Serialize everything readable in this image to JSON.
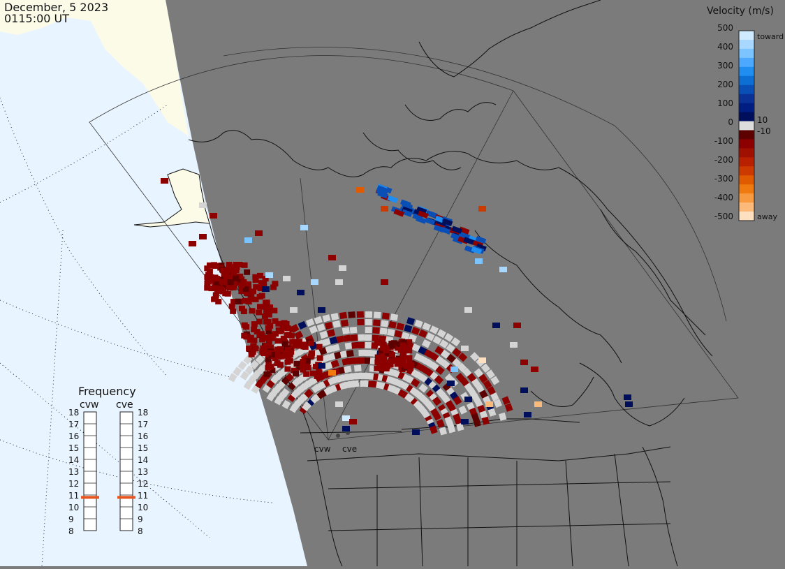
{
  "header": {
    "date": "December, 5 2023",
    "time": "0115:00 UT"
  },
  "colorbar": {
    "title": "Velocity (m/s)",
    "ticks": [
      "500",
      "400",
      "300",
      "200",
      "100",
      "0",
      "-100",
      "-200",
      "-300",
      "-400",
      "-500"
    ],
    "labels": {
      "toward": "toward",
      "away": "away",
      "pos_min": "10",
      "neg_min": "-10"
    },
    "colors": [
      "#cfe9ff",
      "#a8d8ff",
      "#7cc4ff",
      "#4da9ff",
      "#1f8ef0",
      "#0d6fd4",
      "#0a4fb5",
      "#0a3296",
      "#001e82",
      "#000f5c",
      "#dcdcdc",
      "#5c0000",
      "#8c0000",
      "#a01000",
      "#b82000",
      "#cc3a00",
      "#e05a00",
      "#ef7a10",
      "#f79a40",
      "#fbba7a",
      "#fde0c0"
    ]
  },
  "frequency": {
    "title": "Frequency",
    "radars": [
      {
        "name": "cvw",
        "value": 10.8
      },
      {
        "name": "cve",
        "value": 10.8
      }
    ],
    "scale": [
      "18",
      "17",
      "16",
      "15",
      "14",
      "13",
      "12",
      "11",
      "10",
      "9",
      "8"
    ],
    "marker_color": "#e8541e"
  },
  "map": {
    "radar_labels": [
      "cvw",
      "cve"
    ],
    "colors": {
      "land": "#7b7b7b",
      "sunlit_land": "#fbfbe8",
      "sunlit_sea": "#e8f4ff",
      "coast": "#111111",
      "grid": "#444444",
      "scatter_gray": "#d4d4d4"
    }
  }
}
